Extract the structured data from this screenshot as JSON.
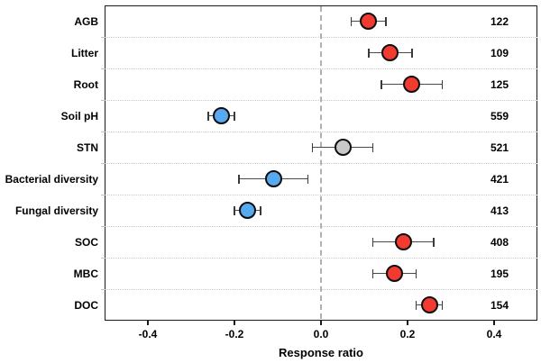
{
  "chart_data": {
    "type": "scatter",
    "subtype": "forest-plot-dot-with-error-bars",
    "title": "",
    "xlabel": "Response ratio",
    "ylabel": "",
    "xlim": [
      -0.5,
      0.5
    ],
    "x_ticks": [
      -0.4,
      -0.2,
      0.0,
      0.2,
      0.4
    ],
    "x_tick_labels": [
      "-0.4",
      "-0.2",
      "0.0",
      "0.2",
      "0.4"
    ],
    "zero_line_x": 0.0,
    "grid": "dotted horizontal separators between categories",
    "legend": "none",
    "palette": {
      "increase": "#f23b30",
      "decrease": "#57a9f0",
      "neutral": "#c9c9c9",
      "outline": "#0d0d0d",
      "error_bar": "#4a4a4a",
      "zero_line": "#b0b0b0",
      "gridline": "#c9c9c9"
    },
    "points": [
      {
        "category": "AGB",
        "mean": 0.11,
        "ci_low": 0.07,
        "ci_high": 0.15,
        "n": 122,
        "color": "increase"
      },
      {
        "category": "Litter",
        "mean": 0.16,
        "ci_low": 0.11,
        "ci_high": 0.21,
        "n": 109,
        "color": "increase"
      },
      {
        "category": "Root",
        "mean": 0.21,
        "ci_low": 0.14,
        "ci_high": 0.28,
        "n": 125,
        "color": "increase"
      },
      {
        "category": "Soil pH",
        "mean": -0.23,
        "ci_low": -0.26,
        "ci_high": -0.2,
        "n": 559,
        "color": "decrease"
      },
      {
        "category": "STN",
        "mean": 0.05,
        "ci_low": -0.02,
        "ci_high": 0.12,
        "n": 521,
        "color": "neutral"
      },
      {
        "category": "Bacterial diversity",
        "mean": -0.11,
        "ci_low": -0.19,
        "ci_high": -0.03,
        "n": 421,
        "color": "decrease"
      },
      {
        "category": "Fungal diversity",
        "mean": -0.17,
        "ci_low": -0.2,
        "ci_high": -0.14,
        "n": 413,
        "color": "decrease"
      },
      {
        "category": "SOC",
        "mean": 0.19,
        "ci_low": 0.12,
        "ci_high": 0.26,
        "n": 408,
        "color": "increase"
      },
      {
        "category": "MBC",
        "mean": 0.17,
        "ci_low": 0.12,
        "ci_high": 0.22,
        "n": 195,
        "color": "increase"
      },
      {
        "category": "DOC",
        "mean": 0.25,
        "ci_low": 0.22,
        "ci_high": 0.28,
        "n": 154,
        "color": "increase"
      }
    ]
  }
}
